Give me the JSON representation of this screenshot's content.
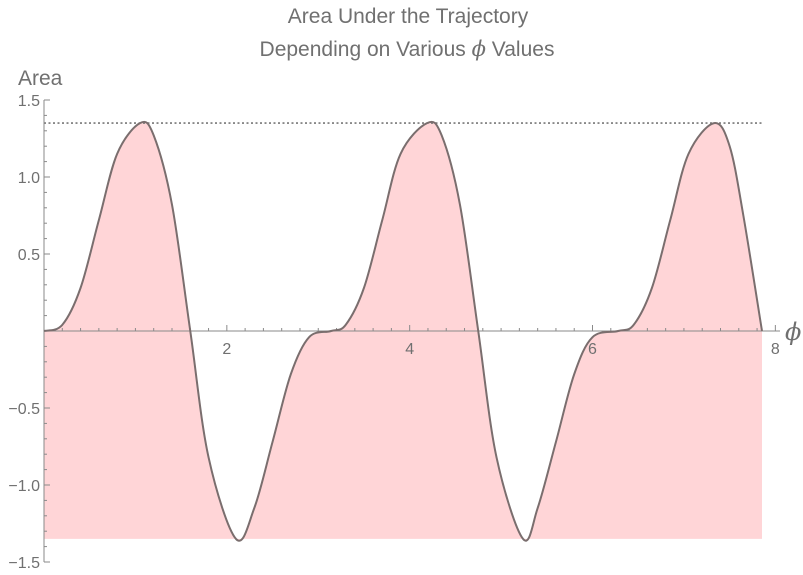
{
  "chart_data": {
    "type": "area",
    "title_line1": "Area Under the Trajectory",
    "title_line2_prefix": "Depending on Various ",
    "title_line2_symbol": "ϕ",
    "title_line2_suffix": " Values",
    "xlabel": "ϕ",
    "ylabel": "Area",
    "xlim": [
      0,
      7.854
    ],
    "ylim": [
      -1.5,
      1.5
    ],
    "x_ticks": [
      {
        "value": 2,
        "label": "2"
      },
      {
        "value": 4,
        "label": "4"
      },
      {
        "value": 6,
        "label": "6"
      },
      {
        "value": 8,
        "label": "8"
      }
    ],
    "y_ticks": [
      {
        "value": 1.5,
        "label": "1.5"
      },
      {
        "value": 1.0,
        "label": "1.0"
      },
      {
        "value": 0.5,
        "label": "0.5"
      },
      {
        "value": -0.5,
        "label": "−0.5"
      },
      {
        "value": -1.0,
        "label": "−1.0"
      },
      {
        "value": -1.5,
        "label": "−1.5"
      }
    ],
    "reference_line_y": 1.35,
    "fill_baseline_y": -1.35,
    "series": [
      {
        "x": [
          0,
          0.2,
          0.4,
          0.6,
          0.8,
          1.05,
          1.2,
          1.4,
          1.6,
          1.8,
          2.1,
          2.3,
          2.5,
          2.7,
          2.9,
          3.14,
          3.3,
          3.5,
          3.7,
          3.9,
          4.19,
          4.35,
          4.55,
          4.75,
          4.95,
          5.24,
          5.4,
          5.6,
          5.8,
          6.0,
          6.28,
          6.45,
          6.65,
          6.85,
          7.05,
          7.33,
          7.5,
          7.65,
          7.854
        ],
        "y": [
          0.0,
          0.04,
          0.28,
          0.72,
          1.15,
          1.35,
          1.27,
          0.82,
          0.0,
          -0.82,
          -1.35,
          -1.15,
          -0.72,
          -0.28,
          -0.04,
          0.0,
          0.04,
          0.28,
          0.72,
          1.15,
          1.35,
          1.27,
          0.82,
          0.0,
          -0.82,
          -1.35,
          -1.15,
          -0.72,
          -0.28,
          -0.04,
          0.0,
          0.04,
          0.28,
          0.72,
          1.15,
          1.35,
          1.2,
          0.75,
          0.0
        ]
      }
    ],
    "colors": {
      "fill": "#ffd5d7",
      "curve": "#7a6e6e",
      "axes": "#8a8a8a",
      "text": "#707070"
    },
    "grid": false
  }
}
